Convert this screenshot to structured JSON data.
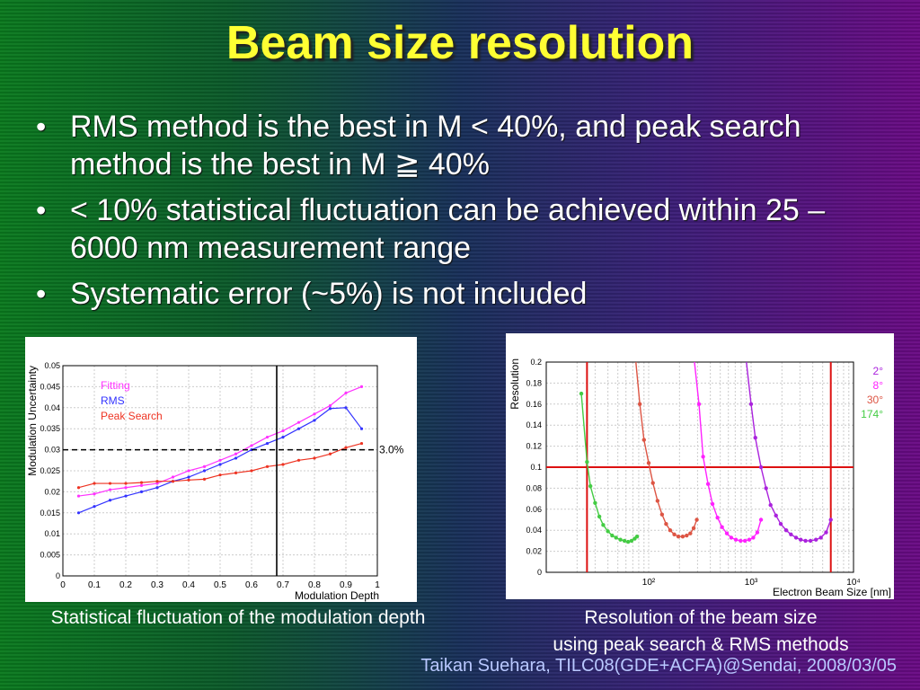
{
  "slide": {
    "title": "Beam size resolution",
    "bullets": [
      "RMS method is the best in M < 40%, and peak search method is the best in M ≧ 40%",
      "< 10% statistical fluctuation can be achieved within 25 – 6000 nm measurement range",
      "Systematic error (~5%) is not included"
    ],
    "caption_left": "Statistical fluctuation of the modulation depth",
    "caption_right_line1": "Resolution of the beam size",
    "caption_right_line2": "using peak search & RMS methods",
    "footer": "Taikan Suehara, TILC08(GDE+ACFA)@Sendai, 2008/03/05"
  },
  "colors": {
    "title": "#ffff33",
    "fitting": "#ff33ff",
    "rms": "#3333ff",
    "peak": "#ee3322",
    "deg2": "#aa22dd",
    "deg8": "#ff22ff",
    "deg30": "#dd5544",
    "deg174": "#44cc44"
  },
  "chart_data": [
    {
      "type": "line",
      "xlabel": "Modulation Depth",
      "ylabel": "Modulation Uncertainty",
      "xlim": [
        0,
        1
      ],
      "ylim": [
        0,
        0.05
      ],
      "xticks": [
        "0",
        "0.1",
        "0.2",
        "0.3",
        "0.4",
        "0.5",
        "0.6",
        "0.7",
        "0.8",
        "0.9",
        "1"
      ],
      "yticks": [
        "0",
        "0.005",
        "0.01",
        "0.015",
        "0.02",
        "0.025",
        "0.03",
        "0.035",
        "0.04",
        "0.045",
        "0.05"
      ],
      "hline": {
        "y": 0.03,
        "label": "3.0%"
      },
      "vline": {
        "x": 0.68
      },
      "legend_position": "top-left",
      "series": [
        {
          "name": "Fitting",
          "color": "#ff33ff",
          "x": [
            0.05,
            0.1,
            0.15,
            0.2,
            0.25,
            0.3,
            0.35,
            0.4,
            0.45,
            0.5,
            0.55,
            0.6,
            0.65,
            0.7,
            0.75,
            0.8,
            0.85,
            0.9,
            0.95
          ],
          "y": [
            0.019,
            0.0195,
            0.0205,
            0.021,
            0.0215,
            0.022,
            0.0235,
            0.025,
            0.026,
            0.0275,
            0.029,
            0.031,
            0.033,
            0.0345,
            0.0365,
            0.0385,
            0.0405,
            0.0435,
            0.045
          ]
        },
        {
          "name": "RMS",
          "color": "#3333ff",
          "x": [
            0.05,
            0.1,
            0.15,
            0.2,
            0.25,
            0.3,
            0.35,
            0.4,
            0.45,
            0.5,
            0.55,
            0.6,
            0.65,
            0.7,
            0.75,
            0.8,
            0.85,
            0.9,
            0.95
          ],
          "y": [
            0.015,
            0.0165,
            0.018,
            0.019,
            0.02,
            0.021,
            0.0225,
            0.0235,
            0.025,
            0.0265,
            0.028,
            0.03,
            0.0315,
            0.033,
            0.035,
            0.037,
            0.0398,
            0.04,
            0.035
          ]
        },
        {
          "name": "Peak Search",
          "color": "#ee3322",
          "x": [
            0.05,
            0.1,
            0.15,
            0.2,
            0.25,
            0.3,
            0.35,
            0.4,
            0.45,
            0.5,
            0.55,
            0.6,
            0.65,
            0.7,
            0.75,
            0.8,
            0.85,
            0.9,
            0.95
          ],
          "y": [
            0.021,
            0.022,
            0.022,
            0.022,
            0.0222,
            0.0225,
            0.0225,
            0.0228,
            0.023,
            0.024,
            0.0245,
            0.025,
            0.026,
            0.0265,
            0.0275,
            0.028,
            0.029,
            0.0305,
            0.0315
          ]
        }
      ]
    },
    {
      "type": "line",
      "xlabel": "Electron Beam Size [nm]",
      "ylabel": "Resolution",
      "x_scale": "log",
      "xlim": [
        10,
        10000
      ],
      "ylim": [
        0,
        0.2
      ],
      "xticks": [
        "10²",
        "10³",
        "10⁴"
      ],
      "yticks": [
        "0",
        "0.02",
        "0.04",
        "0.06",
        "0.08",
        "0.1",
        "0.12",
        "0.14",
        "0.16",
        "0.18",
        "0.2"
      ],
      "hline": {
        "y": 0.1
      },
      "vlines": [
        {
          "x": 25
        },
        {
          "x": 6000
        }
      ],
      "legend_position": "top-right",
      "series": [
        {
          "name": "174°",
          "color": "#44cc44",
          "x": [
            22,
            25,
            27,
            30,
            33,
            36,
            40,
            44,
            48,
            53,
            58,
            63,
            68,
            73,
            77
          ],
          "y": [
            0.17,
            0.105,
            0.082,
            0.066,
            0.053,
            0.045,
            0.039,
            0.035,
            0.033,
            0.031,
            0.03,
            0.029,
            0.03,
            0.032,
            0.034
          ]
        },
        {
          "name": "30°",
          "color": "#dd5544",
          "x": [
            75,
            82,
            90,
            100,
            110,
            122,
            135,
            148,
            162,
            178,
            195,
            215,
            235,
            255,
            275,
            295
          ],
          "y": [
            0.2,
            0.16,
            0.126,
            0.104,
            0.085,
            0.068,
            0.055,
            0.046,
            0.04,
            0.036,
            0.034,
            0.034,
            0.035,
            0.037,
            0.042,
            0.05
          ]
        },
        {
          "name": "8°",
          "color": "#ff22ff",
          "x": [
            280,
            310,
            340,
            380,
            420,
            470,
            520,
            580,
            640,
            710,
            790,
            870,
            960,
            1050,
            1150,
            1250
          ],
          "y": [
            0.2,
            0.16,
            0.11,
            0.084,
            0.065,
            0.052,
            0.043,
            0.037,
            0.033,
            0.031,
            0.03,
            0.03,
            0.031,
            0.033,
            0.038,
            0.05
          ]
        },
        {
          "name": "2°",
          "color": "#aa22dd",
          "x": [
            900,
            1000,
            1100,
            1250,
            1400,
            1550,
            1750,
            1950,
            2200,
            2450,
            2750,
            3050,
            3400,
            3800,
            4300,
            4800,
            5400,
            6000
          ],
          "y": [
            0.2,
            0.16,
            0.128,
            0.1,
            0.08,
            0.064,
            0.054,
            0.046,
            0.04,
            0.036,
            0.033,
            0.031,
            0.03,
            0.03,
            0.031,
            0.033,
            0.038,
            0.05
          ]
        }
      ]
    }
  ]
}
